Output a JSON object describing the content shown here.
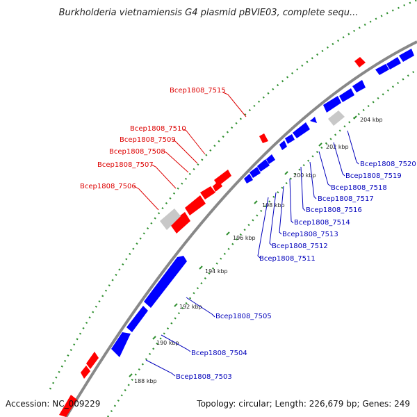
{
  "title": "Burkholderia vietnamiensis G4 plasmid pBVIE03, complete sequ...",
  "footer": {
    "accession": "Accession: NC_009229",
    "summary": "Topology: circular; Length: 226,679 bp; Genes: 249"
  },
  "colors": {
    "forward": "#ff0000",
    "reverse": "#0000ff",
    "rna": "#c8c8c8",
    "backbone": "#888888",
    "dots": "#2f8f2f",
    "forward_label": "#dd0000",
    "reverse_label": "#0000bb"
  },
  "tick_labels": [
    "188 kbp",
    "190 kbp",
    "192 kbp",
    "194 kbp",
    "196 kbp",
    "198 kbp",
    "200 kbp",
    "202 kbp",
    "204 kbp"
  ],
  "gene_labels": {
    "forward": [
      "Bcep1808_7515",
      "Bcep1808_7510",
      "Bcep1808_7509",
      "Bcep1808_7508",
      "Bcep1808_7507",
      "Bcep1808_7506"
    ],
    "reverse": [
      "Bcep1808_7520",
      "Bcep1808_7519",
      "Bcep1808_7518",
      "Bcep1808_7517",
      "Bcep1808_7516",
      "Bcep1808_7514",
      "Bcep1808_7513",
      "Bcep1808_7512",
      "Bcep1808_7511",
      "Bcep1808_7505",
      "Bcep1808_7504",
      "Bcep1808_7503"
    ]
  }
}
